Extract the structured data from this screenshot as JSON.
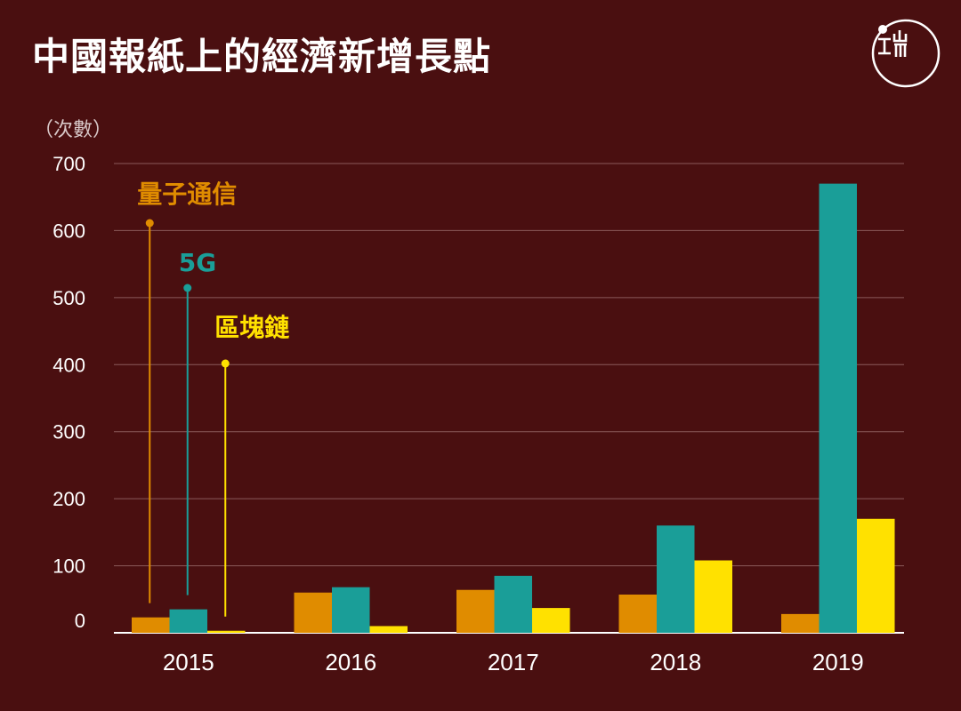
{
  "title": "中國報紙上的經濟新增長點",
  "logo": {
    "text": "端",
    "icon": "initium-logo-icon"
  },
  "chart_data": {
    "type": "bar",
    "title": "中國報紙上的經濟新增長點",
    "ylabel": "（次數）",
    "xlabel": "",
    "ylim": [
      0,
      700
    ],
    "yticks": [
      0,
      100,
      200,
      300,
      400,
      500,
      600,
      700
    ],
    "categories": [
      "2015",
      "2016",
      "2017",
      "2018",
      "2019"
    ],
    "grid": true,
    "series": [
      {
        "name": "量子通信",
        "color": "#e08c00",
        "values": [
          23,
          60,
          64,
          57,
          28
        ]
      },
      {
        "name": "5G",
        "color": "#1a9e98",
        "values": [
          35,
          68,
          85,
          160,
          670
        ]
      },
      {
        "name": "區塊鏈",
        "color": "#ffe100",
        "values": [
          3,
          10,
          37,
          108,
          170
        ]
      }
    ]
  }
}
